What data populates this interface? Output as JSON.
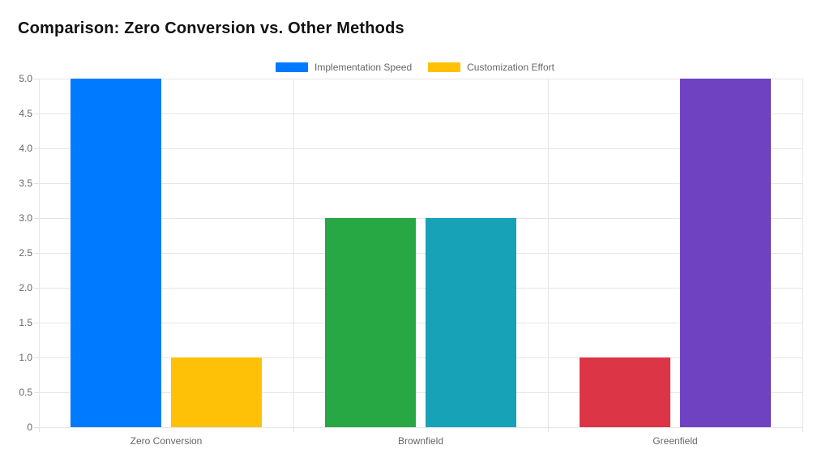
{
  "page_title": "Comparison: Zero Conversion vs. Other Methods",
  "legend": {
    "position": "top",
    "items": [
      {
        "label": "Implementation Speed",
        "color": "#007bff"
      },
      {
        "label": "Customization Effort",
        "color": "#ffc107"
      }
    ]
  },
  "chart_data": {
    "type": "bar",
    "title": "Comparison: Zero Conversion vs. Other Methods",
    "categories": [
      "Zero Conversion",
      "Brownfield",
      "Greenfield"
    ],
    "series": [
      {
        "name": "Implementation Speed",
        "values": [
          5,
          3,
          1
        ],
        "colors": [
          "#007bff",
          "#28a745",
          "#dc3545"
        ]
      },
      {
        "name": "Customization Effort",
        "values": [
          1,
          3,
          5
        ],
        "colors": [
          "#ffc107",
          "#17a2b8",
          "#6f42c1"
        ]
      }
    ],
    "ylim": [
      0,
      5
    ],
    "ytick_step": 0.5,
    "ytick_labels": [
      "0",
      "0.5",
      "1.0",
      "1.5",
      "2.0",
      "2.5",
      "3.0",
      "3.5",
      "4.0",
      "4.5",
      "5.0"
    ],
    "grid": true,
    "legend_position": "top",
    "theme": {
      "background": "#ffffff",
      "grid_color": "#e6e6e6",
      "tick_text_color": "#666666",
      "title_color": "#111111"
    }
  }
}
